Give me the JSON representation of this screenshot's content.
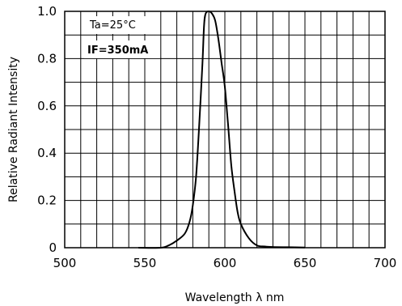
{
  "chart_data": {
    "type": "line",
    "title": "",
    "xlabel": "Wavelength λ nm",
    "ylabel": "Relative Radiant Intensity",
    "xlim": [
      500,
      700
    ],
    "ylim": [
      0,
      1.0
    ],
    "x_ticks": [
      "500",
      "550",
      "600",
      "650",
      "700"
    ],
    "y_ticks": [
      "0",
      "0.2",
      "0.4",
      "0.6",
      "0.8",
      "1.0"
    ],
    "grid": true,
    "annotations": [
      "Ta=25°C",
      "IF=350mA"
    ],
    "series": [
      {
        "x": [
          546,
          560,
          565,
          570,
          575,
          578,
          580,
          582,
          584,
          586,
          587,
          588,
          590,
          592,
          594,
          596,
          598,
          600,
          602,
          604,
          606,
          608,
          610,
          615,
          620,
          625,
          630,
          640,
          650
        ],
        "y": [
          0.0,
          0.0,
          0.01,
          0.03,
          0.06,
          0.11,
          0.18,
          0.3,
          0.52,
          0.78,
          0.94,
          0.99,
          1.0,
          0.99,
          0.96,
          0.88,
          0.78,
          0.68,
          0.52,
          0.35,
          0.24,
          0.15,
          0.1,
          0.04,
          0.01,
          0.005,
          0.003,
          0.002,
          0.001
        ]
      }
    ]
  }
}
